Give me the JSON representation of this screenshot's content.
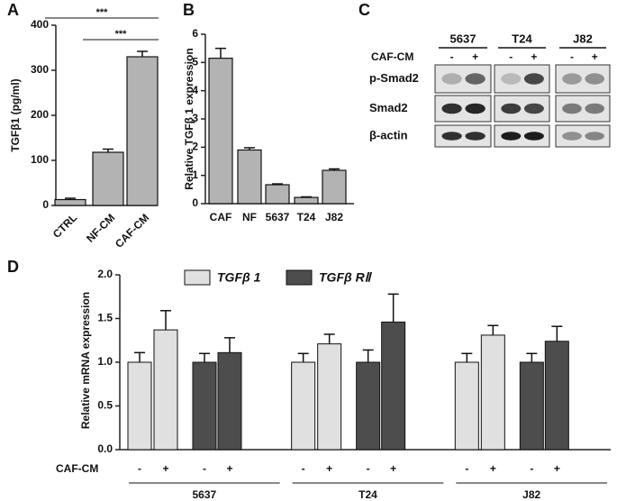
{
  "chart_data": [
    {
      "panel": "A",
      "type": "bar",
      "y_label": "TGFβ1 (pg/ml)",
      "categories": [
        "CTRL",
        "NF-CM",
        "CAF-CM"
      ],
      "values": [
        13,
        118,
        330
      ],
      "errors": [
        3,
        7,
        12
      ],
      "color": "#b3b3b3",
      "ylim": [
        0,
        400
      ],
      "yticks": [
        0,
        100,
        200,
        300,
        400
      ],
      "annotations": [
        {
          "text": "***",
          "between": [
            "CTRL",
            "CAF-CM"
          ]
        },
        {
          "text": "***",
          "between": [
            "NF-CM",
            "CAF-CM"
          ]
        }
      ]
    },
    {
      "panel": "B",
      "type": "bar",
      "y_label": "Relative TGFβ 1 expression",
      "categories": [
        "CAF",
        "NF",
        "5637",
        "T24",
        "J82"
      ],
      "values": [
        5.15,
        1.9,
        0.67,
        0.22,
        1.18
      ],
      "errors": [
        0.35,
        0.08,
        0.03,
        0.02,
        0.05
      ],
      "color": "#b3b3b3",
      "ylim": [
        0,
        6
      ],
      "yticks": [
        0,
        1,
        2,
        3,
        4,
        5,
        6
      ]
    },
    {
      "panel": "D",
      "type": "grouped_bar",
      "y_label": "Relative mRNA expression",
      "groups": [
        "5637",
        "T24",
        "J82"
      ],
      "treatment_label": "CAF-CM",
      "conditions": [
        "-",
        "+"
      ],
      "series": [
        {
          "name": "TGFβ 1",
          "color": "#e0e0e0",
          "values": [
            1.0,
            1.37,
            1.0,
            1.21,
            1.0,
            1.31
          ],
          "errors": [
            0.11,
            0.22,
            0.1,
            0.11,
            0.1,
            0.11
          ]
        },
        {
          "name": "TGFβ RⅡ",
          "color": "#4d4d4d",
          "values": [
            1.0,
            1.11,
            1.0,
            1.46,
            1.0,
            1.24
          ],
          "errors": [
            0.1,
            0.17,
            0.14,
            0.32,
            0.1,
            0.17
          ]
        }
      ],
      "ylim": [
        0,
        2
      ],
      "yticks": [
        {
          "value": 0,
          "label": "0.0"
        },
        0.5,
        {
          "value": 1,
          "label": "1.0"
        },
        1.5,
        {
          "value": 2,
          "label": "2.0"
        }
      ]
    }
  ],
  "blot": {
    "panel": "C",
    "cell_lines": [
      "5637",
      "T24",
      "J82"
    ],
    "treatment_label": "CAF-CM",
    "conditions": [
      "-",
      "+"
    ],
    "rows": [
      "p-Smad2",
      "Smad2",
      "β-actin"
    ]
  }
}
